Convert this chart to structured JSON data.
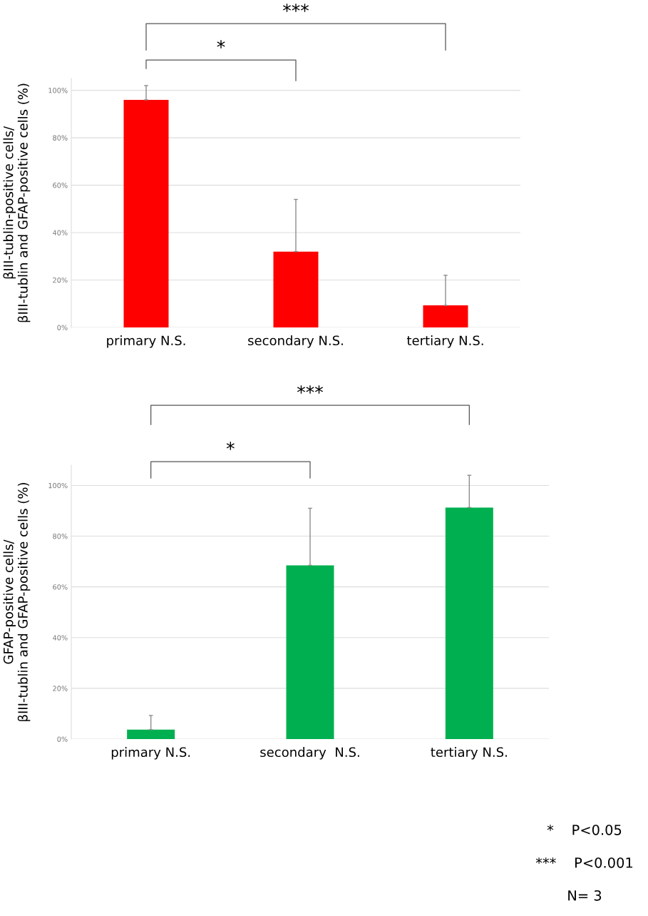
{
  "chart_data": [
    {
      "type": "bar",
      "ylabel": "βIII-tublin-positive cells/\nβIII-tublin and GFAP-positive cells (%)",
      "categories": [
        "primary N.S.",
        "secondary N.S.",
        "tertiary N.S."
      ],
      "values": [
        96,
        32,
        9.3
      ],
      "color": "#ff0000",
      "errors": [
        [
          96,
          102
        ],
        [
          32,
          54
        ],
        [
          9.3,
          22
        ]
      ],
      "ylim": [
        0,
        105
      ],
      "yticks": [
        {
          "value": 0,
          "label": "0%"
        },
        {
          "value": 20,
          "label": "20%"
        },
        {
          "value": 40,
          "label": "40%"
        },
        {
          "value": 60,
          "label": "60%"
        },
        {
          "value": 80,
          "label": "80%"
        },
        {
          "value": 100,
          "label": "100%"
        }
      ],
      "grid": "y",
      "annotations": [
        "*",
        "***"
      ]
    },
    {
      "type": "bar",
      "ylabel": "GFAP-positive cells/\nβIII-tublin and GFAP-positive cells (%)",
      "categories": [
        "primary N.S.",
        "secondary  N.S.",
        "tertiary N.S."
      ],
      "values": [
        3.7,
        68.5,
        91.3
      ],
      "color": "#00b050",
      "errors": [
        [
          3.7,
          9.3
        ],
        [
          68.5,
          91
        ],
        [
          91.3,
          104
        ]
      ],
      "ylim": [
        0,
        108
      ],
      "yticks": [
        {
          "value": 0,
          "label": "0%"
        },
        {
          "value": 20,
          "label": "20%"
        },
        {
          "value": 40,
          "label": "40%"
        },
        {
          "value": 60,
          "label": "60%"
        },
        {
          "value": 80,
          "label": "80%"
        },
        {
          "value": 100,
          "label": "100%"
        }
      ],
      "grid": "y",
      "annotations": [
        "*",
        "***",
        "*    P<0.05",
        "***    P<0.001",
        "N= 3"
      ]
    }
  ]
}
